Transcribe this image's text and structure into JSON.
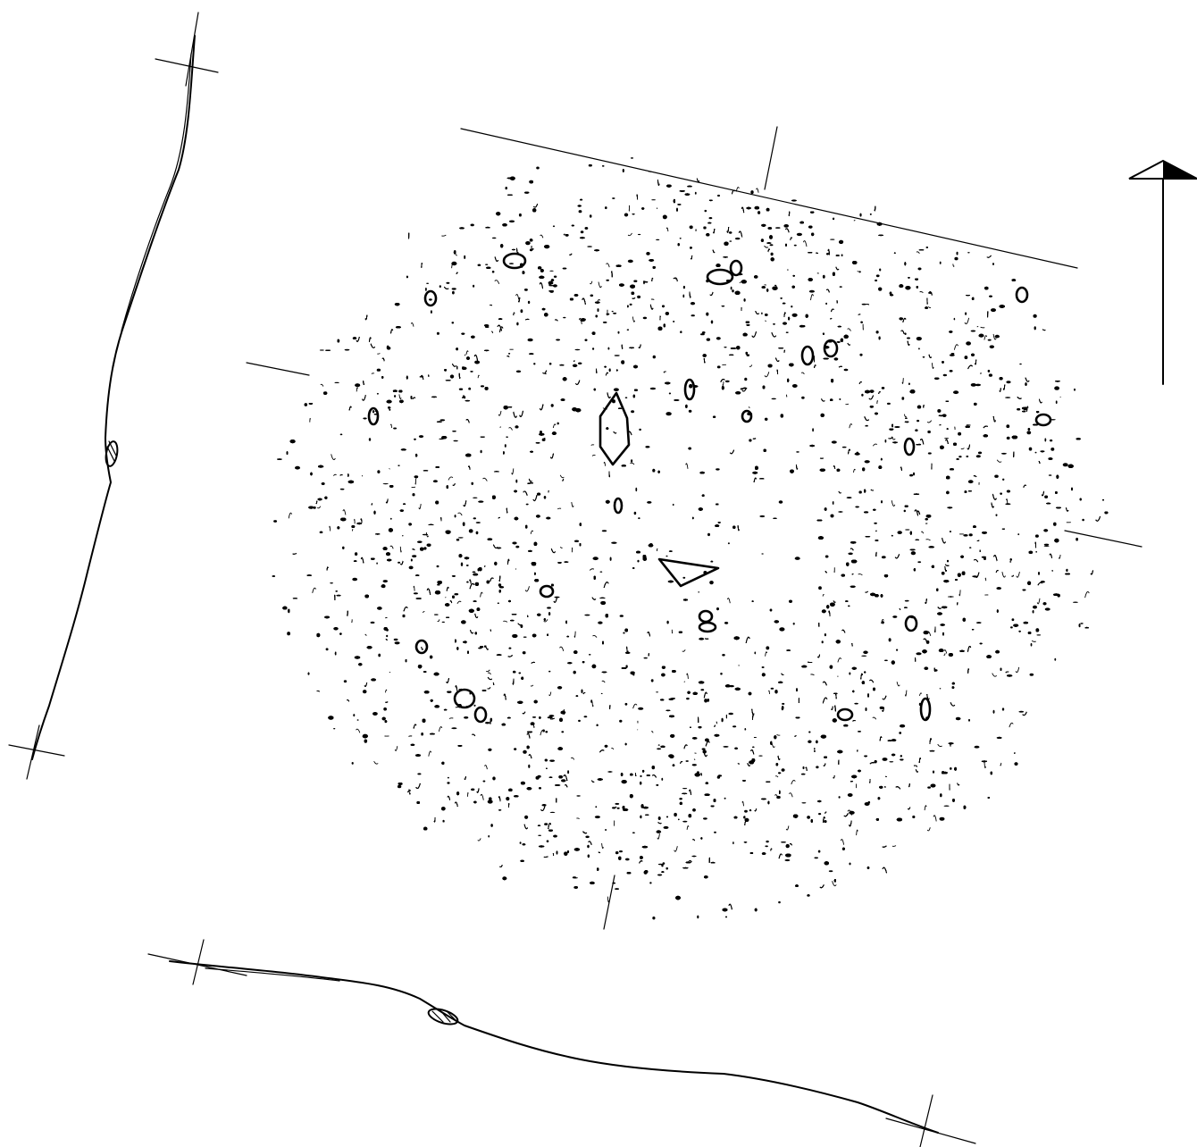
{
  "figure": {
    "ink_color": "#000000",
    "paper_color": "#ffffff",
    "north_arrow": {
      "icon": "north-arrow-icon"
    },
    "sections": [
      {
        "id": "west-profile",
        "icon": "section-profile-icon"
      },
      {
        "id": "south-profile",
        "icon": "section-profile-icon"
      }
    ],
    "feature": {
      "id": "dense-stone-and-charcoal-scatter",
      "icon": "stipple-cluster-icon"
    }
  }
}
